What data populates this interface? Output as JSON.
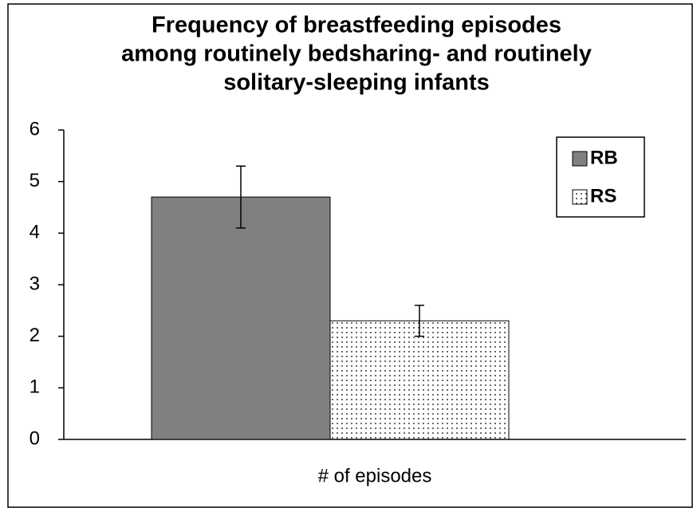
{
  "chart_data": {
    "type": "bar",
    "title": [
      "Frequency of breastfeeding episodes",
      "among routinely bedsharing- and routinely",
      "solitary-sleeping infants"
    ],
    "categories": [
      "# of episodes"
    ],
    "series": [
      {
        "name": "RB",
        "color": "#808080",
        "values": [
          4.7
        ],
        "errors": [
          0.6
        ]
      },
      {
        "name": "RS",
        "color": "#ffffff",
        "pattern": "dots",
        "values": [
          2.3
        ],
        "errors": [
          0.3
        ]
      }
    ],
    "ylim": [
      0,
      6
    ],
    "yticks": [
      0,
      1,
      2,
      3,
      4,
      5,
      6
    ],
    "grid": false,
    "legend": "top-right"
  }
}
